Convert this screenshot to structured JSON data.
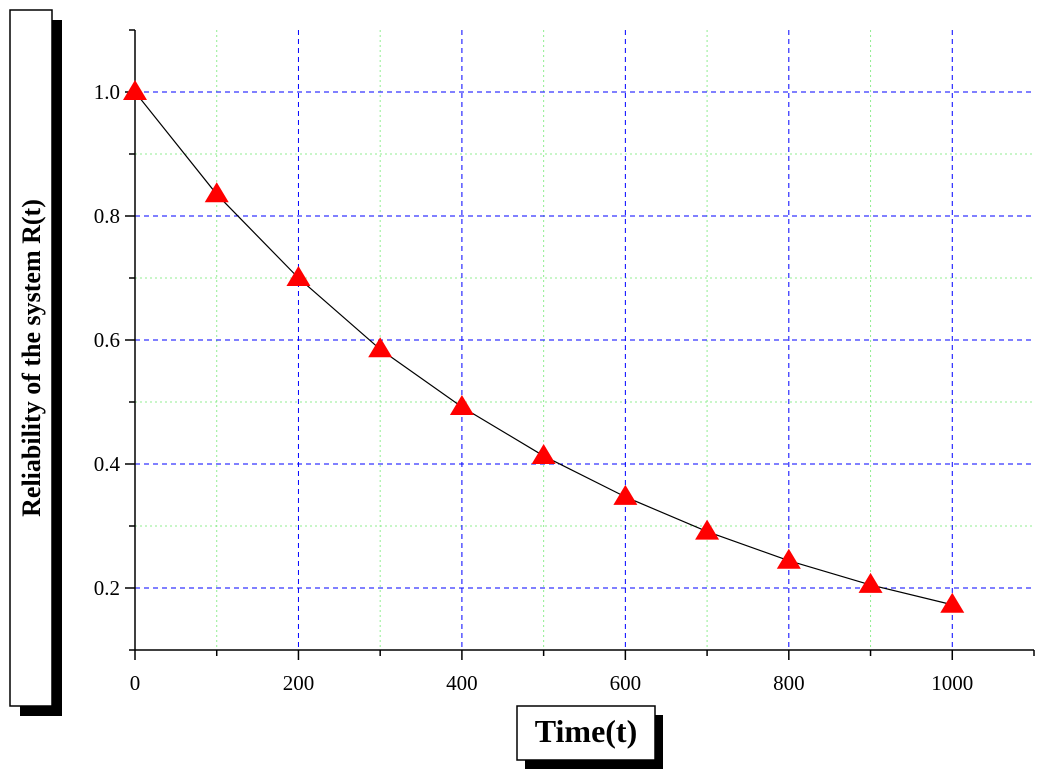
{
  "chart_data": {
    "type": "line",
    "title": "",
    "xlabel": "Time(t)",
    "ylabel": "Reliability of the system R(t)",
    "xlim": [
      0,
      1100
    ],
    "ylim": [
      0.1,
      1.1
    ],
    "x_ticks": [
      0,
      200,
      400,
      600,
      800,
      1000
    ],
    "x_tick_labels": [
      "0",
      "200",
      "400",
      "600",
      "800",
      "1000"
    ],
    "y_ticks": [
      0.2,
      0.4,
      0.6,
      0.8,
      1.0
    ],
    "y_tick_labels": [
      "0.2",
      "0.4",
      "0.6",
      "0.8",
      "1.0"
    ],
    "grid": true,
    "series": [
      {
        "x": [
          0,
          100,
          200,
          300,
          400,
          500,
          600,
          700,
          800,
          900,
          1000
        ],
        "y": [
          1.0,
          0.835,
          0.7,
          0.585,
          0.492,
          0.413,
          0.347,
          0.291,
          0.244,
          0.205,
          0.173
        ],
        "marker": "triangle",
        "marker_color": "#ff0000",
        "line_color": "#000000"
      }
    ],
    "colors": {
      "major_grid": "#0000ff",
      "minor_grid": "#90ee90",
      "marker": "#ff0000"
    }
  }
}
